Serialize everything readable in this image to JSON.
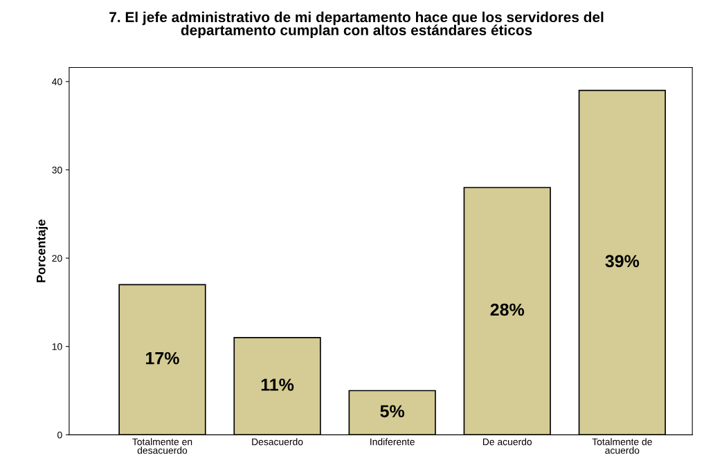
{
  "chart_data": {
    "type": "bar",
    "title": "7. El jefe administrativo de mi departamento hace que los servidores del\ndepartamento cumplan con altos estándares éticos",
    "ylabel": "Porcentaje",
    "categories": [
      "Totalmente en\ndesacuerdo",
      "Desacuerdo",
      "Indiferente",
      "De acuerdo",
      "Totalmente de\nacuerdo"
    ],
    "values": [
      17,
      11,
      5,
      28,
      39
    ],
    "value_labels": [
      "17%",
      "11%",
      "5%",
      "28%",
      "39%"
    ],
    "color": "#d4cc94",
    "ylim": [
      0,
      41.6
    ],
    "yticks": [
      0,
      10,
      20,
      30,
      40
    ],
    "grid": false,
    "legend": false
  }
}
